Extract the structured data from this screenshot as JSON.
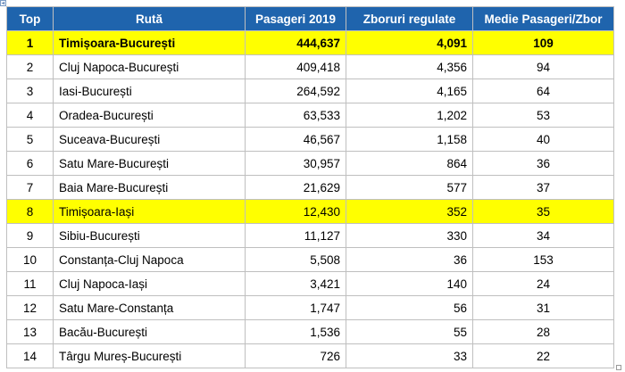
{
  "table": {
    "headers": [
      "Top",
      "Rută",
      "Pasageri 2019",
      "Zboruri regulate",
      "Medie Pasageri/Zbor"
    ],
    "rows": [
      {
        "rank": "1",
        "route": "Timișoara-București",
        "passengers": "444,637",
        "flights": "4,091",
        "avg": "109",
        "highlight": true,
        "bold": true
      },
      {
        "rank": "2",
        "route": "Cluj Napoca-București",
        "passengers": "409,418",
        "flights": "4,356",
        "avg": "94",
        "highlight": false,
        "bold": false
      },
      {
        "rank": "3",
        "route": "Iasi-București",
        "passengers": "264,592",
        "flights": "4,165",
        "avg": "64",
        "highlight": false,
        "bold": false
      },
      {
        "rank": "4",
        "route": "Oradea-București",
        "passengers": "63,533",
        "flights": "1,202",
        "avg": "53",
        "highlight": false,
        "bold": false
      },
      {
        "rank": "5",
        "route": "Suceava-București",
        "passengers": "46,567",
        "flights": "1,158",
        "avg": "40",
        "highlight": false,
        "bold": false
      },
      {
        "rank": "6",
        "route": "Satu Mare-București",
        "passengers": "30,957",
        "flights": "864",
        "avg": "36",
        "highlight": false,
        "bold": false
      },
      {
        "rank": "7",
        "route": "Baia Mare-București",
        "passengers": "21,629",
        "flights": "577",
        "avg": "37",
        "highlight": false,
        "bold": false
      },
      {
        "rank": "8",
        "route": "Timișoara-Iași",
        "passengers": "12,430",
        "flights": "352",
        "avg": "35",
        "highlight": true,
        "bold": false
      },
      {
        "rank": "9",
        "route": "Sibiu-București",
        "passengers": "11,127",
        "flights": "330",
        "avg": "34",
        "highlight": false,
        "bold": false
      },
      {
        "rank": "10",
        "route": "Constanța-Cluj Napoca",
        "passengers": "5,508",
        "flights": "36",
        "avg": "153",
        "highlight": false,
        "bold": false
      },
      {
        "rank": "11",
        "route": "Cluj Napoca-Iași",
        "passengers": "3,421",
        "flights": "140",
        "avg": "24",
        "highlight": false,
        "bold": false
      },
      {
        "rank": "12",
        "route": "Satu Mare-Constanța",
        "passengers": "1,747",
        "flights": "56",
        "avg": "31",
        "highlight": false,
        "bold": false
      },
      {
        "rank": "13",
        "route": "Bacău-București",
        "passengers": "1,536",
        "flights": "55",
        "avg": "28",
        "highlight": false,
        "bold": false
      },
      {
        "rank": "14",
        "route": "Târgu Mureș-București",
        "passengers": "726",
        "flights": "33",
        "avg": "22",
        "highlight": false,
        "bold": false
      }
    ]
  },
  "colors": {
    "header_bg": "#1f64ad",
    "header_text": "#ffffff",
    "highlight": "#ffff00",
    "grid": "#bfbfbf"
  }
}
